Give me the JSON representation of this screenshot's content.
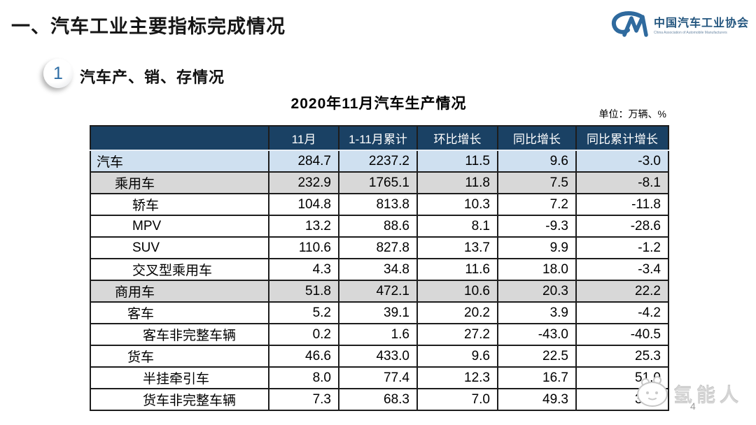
{
  "page": {
    "main_title": "一、汽车工业主要指标完成情况",
    "section_number": "1",
    "section_title": "汽车产、销、存情况",
    "page_number": "4"
  },
  "logo": {
    "monogram": "CM",
    "org_name_cn": "中国汽车工业协会",
    "org_name_en": "China Association of Automobile Manufacturers",
    "brand_color": "#2f6a9e"
  },
  "watermark": {
    "text": "氢能人"
  },
  "colors": {
    "header_bg": "#1a4164",
    "header_text": "#ffffff",
    "total_row_bg": "#cfe0f0",
    "subtotal_row_bg": "#d8d8d8",
    "grid_line": "#1d1d1d"
  },
  "chart_data": {
    "type": "table",
    "title": "2020年11月汽车生产情况",
    "unit_label": "单位：万辆、%",
    "columns": [
      "",
      "11月",
      "1-11月累计",
      "环比增长",
      "同比增长",
      "同比累计增长"
    ],
    "rows": [
      {
        "label": "汽车",
        "indent": 0,
        "style": "blue",
        "values": [
          "284.7",
          "2237.2",
          "11.5",
          "9.6",
          "-3.0"
        ]
      },
      {
        "label": "乘用车",
        "indent": 1,
        "style": "gray",
        "values": [
          "232.9",
          "1765.1",
          "11.8",
          "7.5",
          "-8.1"
        ]
      },
      {
        "label": "轿车",
        "indent": 3,
        "style": "white",
        "values": [
          "104.8",
          "813.8",
          "10.3",
          "7.2",
          "-11.8"
        ]
      },
      {
        "label": "MPV",
        "indent": 3,
        "style": "white",
        "values": [
          "13.2",
          "88.6",
          "8.1",
          "-9.3",
          "-28.6"
        ]
      },
      {
        "label": "SUV",
        "indent": 3,
        "style": "white",
        "values": [
          "110.6",
          "827.8",
          "13.7",
          "9.9",
          "-1.2"
        ]
      },
      {
        "label": "交叉型乘用车",
        "indent": 3,
        "style": "white",
        "values": [
          "4.3",
          "34.8",
          "11.6",
          "18.0",
          "-3.4"
        ]
      },
      {
        "label": "商用车",
        "indent": 1,
        "style": "gray",
        "values": [
          "51.8",
          "472.1",
          "10.6",
          "20.3",
          "22.2"
        ]
      },
      {
        "label": "客车",
        "indent": 2,
        "style": "white",
        "values": [
          "5.2",
          "39.1",
          "20.2",
          "3.9",
          "-4.2"
        ]
      },
      {
        "label": "客车非完整车辆",
        "indent": 4,
        "style": "white",
        "values": [
          "0.2",
          "1.6",
          "27.2",
          "-43.0",
          "-40.5"
        ]
      },
      {
        "label": "货车",
        "indent": 2,
        "style": "white",
        "values": [
          "46.6",
          "433.0",
          "9.6",
          "22.5",
          "25.3"
        ]
      },
      {
        "label": "半挂牵引车",
        "indent": 4,
        "style": "white",
        "values": [
          "8.0",
          "77.4",
          "12.3",
          "16.7",
          "51.0"
        ]
      },
      {
        "label": "货车非完整车辆",
        "indent": 4,
        "style": "white",
        "values": [
          "7.3",
          "68.3",
          "7.0",
          "49.3",
          "31.6"
        ]
      }
    ]
  }
}
